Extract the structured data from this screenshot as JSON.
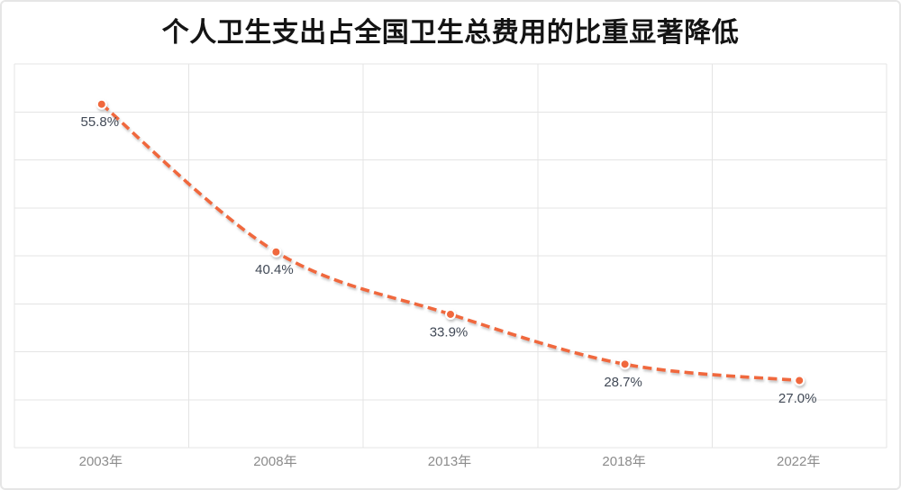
{
  "frame": {
    "background": "#ffffff",
    "border_color": "#e6e6e6"
  },
  "chart_data": {
    "type": "line",
    "title": "个人卫生支出占全国卫生总费用的比重显著降低",
    "categories": [
      "2003年",
      "2008年",
      "2013年",
      "2018年",
      "2022年"
    ],
    "values": [
      55.8,
      40.4,
      33.9,
      28.7,
      27.0
    ],
    "data_labels": [
      "55.8%",
      "40.4%",
      "33.9%",
      "28.7%",
      "27.0%"
    ],
    "xlabel": "",
    "ylabel": "",
    "ylim": [
      20,
      60
    ],
    "y_grid_step": 5,
    "grid": true,
    "legend": "none",
    "line": {
      "style": "dashed",
      "smooth": true,
      "color": "#f0683c",
      "width": 3.6,
      "dash": "10 5.5"
    },
    "marker": {
      "shape": "circle",
      "fill": "#f0683c",
      "ring": "#ffffff"
    },
    "colors": {
      "grid": "#e4e4e4",
      "axis_labels": "#8c8c8c",
      "data_labels": "#414956",
      "title": "#141414"
    }
  }
}
